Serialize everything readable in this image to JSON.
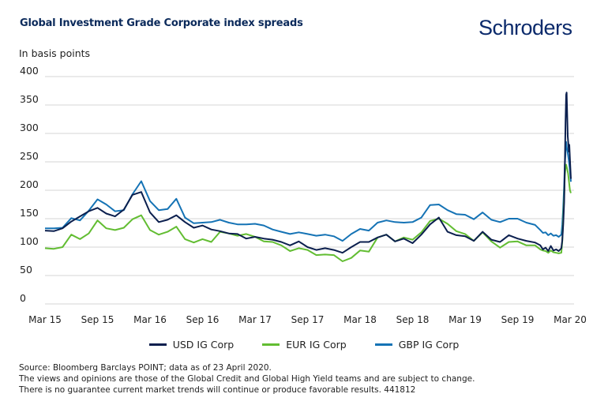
{
  "header": {
    "title": "Global Investment Grade Corporate index spreads",
    "logo_text": "Schroders",
    "unit_label": "In basis points"
  },
  "colors": {
    "usd": "#0b1f4e",
    "eur": "#62bd32",
    "gbp": "#1573b5",
    "grid": "#d4d4d4",
    "title": "#0b2a5b"
  },
  "footer": {
    "lines": [
      "Source: Bloomberg Barclays POINT; data as of 23 April 2020.",
      "The views and opinions are those of the Global Credit and Global High Yield teams and are subject to change.",
      "There is no guarantee current market trends will continue or produce favorable results. 441812"
    ]
  },
  "chart_data": {
    "type": "line",
    "title": "Global Investment Grade Corporate index spreads",
    "ylabel": "In basis points",
    "xlabel": "",
    "ylim": [
      0,
      400
    ],
    "yticks": [
      0,
      50,
      100,
      150,
      200,
      250,
      300,
      350,
      400
    ],
    "xlim_months": [
      0,
      61
    ],
    "xticks": [
      {
        "label": "Mar 15",
        "month": 0
      },
      {
        "label": "Sep 15",
        "month": 6
      },
      {
        "label": "Mar 16",
        "month": 12
      },
      {
        "label": "Sep 16",
        "month": 18
      },
      {
        "label": "Mar 17",
        "month": 24
      },
      {
        "label": "Sep 17",
        "month": 30
      },
      {
        "label": "Mar 18",
        "month": 36
      },
      {
        "label": "Sep 18",
        "month": 42
      },
      {
        "label": "Mar 19",
        "month": 48
      },
      {
        "label": "Sep 19",
        "month": 54
      },
      {
        "label": "Mar 20",
        "month": 60
      }
    ],
    "grid": true,
    "legend_position": "bottom",
    "x_unit": "months since Mar 2015",
    "series": [
      {
        "name": "USD IG Corp",
        "key": "usd",
        "points": [
          [
            0,
            129
          ],
          [
            1,
            128
          ],
          [
            2,
            133
          ],
          [
            3,
            145
          ],
          [
            4,
            154
          ],
          [
            5,
            163
          ],
          [
            6,
            169
          ],
          [
            7,
            159
          ],
          [
            8,
            154
          ],
          [
            9,
            166
          ],
          [
            10,
            192
          ],
          [
            11,
            197
          ],
          [
            12,
            161
          ],
          [
            13,
            144
          ],
          [
            14,
            148
          ],
          [
            15,
            156
          ],
          [
            16,
            144
          ],
          [
            17,
            134
          ],
          [
            18,
            138
          ],
          [
            19,
            131
          ],
          [
            20,
            128
          ],
          [
            21,
            124
          ],
          [
            22,
            123
          ],
          [
            23,
            115
          ],
          [
            24,
            118
          ],
          [
            25,
            115
          ],
          [
            26,
            113
          ],
          [
            27,
            109
          ],
          [
            28,
            103
          ],
          [
            29,
            110
          ],
          [
            30,
            100
          ],
          [
            31,
            95
          ],
          [
            32,
            98
          ],
          [
            33,
            95
          ],
          [
            34,
            90
          ],
          [
            35,
            100
          ],
          [
            36,
            109
          ],
          [
            37,
            109
          ],
          [
            38,
            117
          ],
          [
            39,
            122
          ],
          [
            40,
            110
          ],
          [
            41,
            115
          ],
          [
            42,
            107
          ],
          [
            43,
            122
          ],
          [
            44,
            140
          ],
          [
            45,
            152
          ],
          [
            46,
            127
          ],
          [
            47,
            121
          ],
          [
            48,
            119
          ],
          [
            49,
            111
          ],
          [
            50,
            127
          ],
          [
            51,
            113
          ],
          [
            52,
            109
          ],
          [
            53,
            121
          ],
          [
            54,
            115
          ],
          [
            55,
            111
          ],
          [
            56,
            108
          ],
          [
            56.6,
            103
          ],
          [
            56.9,
            96
          ],
          [
            57.2,
            99
          ],
          [
            57.5,
            93
          ],
          [
            57.8,
            102
          ],
          [
            58.1,
            94
          ],
          [
            58.4,
            96
          ],
          [
            58.7,
            93
          ],
          [
            59.0,
            98
          ],
          [
            59.3,
            112
          ],
          [
            59.6,
            140
          ],
          [
            59.9,
            180
          ],
          [
            60.1,
            240
          ],
          [
            60.3,
            320
          ],
          [
            60.5,
            368
          ],
          [
            60.65,
            372
          ],
          [
            60.8,
            340
          ],
          [
            61.0,
            295
          ],
          [
            61.2,
            281
          ],
          [
            61.35,
            268
          ],
          [
            61.5,
            280
          ],
          [
            61.7,
            255
          ],
          [
            62.0,
            220
          ]
        ]
      },
      {
        "name": "EUR IG Corp",
        "key": "eur",
        "points": [
          [
            0,
            98
          ],
          [
            1,
            97
          ],
          [
            2,
            100
          ],
          [
            3,
            122
          ],
          [
            4,
            114
          ],
          [
            5,
            124
          ],
          [
            6,
            147
          ],
          [
            7,
            133
          ],
          [
            8,
            130
          ],
          [
            9,
            134
          ],
          [
            10,
            149
          ],
          [
            11,
            156
          ],
          [
            12,
            130
          ],
          [
            13,
            122
          ],
          [
            14,
            127
          ],
          [
            15,
            136
          ],
          [
            16,
            114
          ],
          [
            17,
            108
          ],
          [
            18,
            114
          ],
          [
            19,
            109
          ],
          [
            20,
            127
          ],
          [
            21,
            124
          ],
          [
            22,
            120
          ],
          [
            23,
            123
          ],
          [
            24,
            118
          ],
          [
            25,
            110
          ],
          [
            26,
            109
          ],
          [
            27,
            103
          ],
          [
            28,
            93
          ],
          [
            29,
            98
          ],
          [
            30,
            95
          ],
          [
            31,
            86
          ],
          [
            32,
            87
          ],
          [
            33,
            86
          ],
          [
            34,
            75
          ],
          [
            35,
            81
          ],
          [
            36,
            94
          ],
          [
            37,
            92
          ],
          [
            38,
            117
          ],
          [
            39,
            122
          ],
          [
            40,
            110
          ],
          [
            41,
            117
          ],
          [
            42,
            113
          ],
          [
            43,
            126
          ],
          [
            44,
            146
          ],
          [
            45,
            150
          ],
          [
            46,
            141
          ],
          [
            47,
            128
          ],
          [
            48,
            123
          ],
          [
            49,
            111
          ],
          [
            50,
            126
          ],
          [
            51,
            110
          ],
          [
            52,
            99
          ],
          [
            53,
            109
          ],
          [
            54,
            110
          ],
          [
            55,
            103
          ],
          [
            56,
            103
          ],
          [
            56.6,
            96
          ],
          [
            56.9,
            94
          ],
          [
            57.2,
            93
          ],
          [
            57.5,
            90
          ],
          [
            57.8,
            94
          ],
          [
            58.1,
            91
          ],
          [
            58.4,
            90
          ],
          [
            58.7,
            89
          ],
          [
            59.0,
            90
          ],
          [
            59.3,
            110
          ],
          [
            59.6,
            150
          ],
          [
            59.9,
            190
          ],
          [
            60.1,
            225
          ],
          [
            60.3,
            240
          ],
          [
            60.5,
            245
          ],
          [
            60.8,
            238
          ],
          [
            61.1,
            230
          ],
          [
            61.4,
            215
          ],
          [
            61.7,
            200
          ],
          [
            62.0,
            195
          ]
        ]
      },
      {
        "name": "GBP IG Corp",
        "key": "gbp",
        "points": [
          [
            0,
            133
          ],
          [
            1,
            133
          ],
          [
            2,
            134
          ],
          [
            3,
            151
          ],
          [
            4,
            147
          ],
          [
            5,
            164
          ],
          [
            6,
            184
          ],
          [
            7,
            175
          ],
          [
            8,
            163
          ],
          [
            9,
            165
          ],
          [
            10,
            193
          ],
          [
            11,
            216
          ],
          [
            12,
            181
          ],
          [
            13,
            165
          ],
          [
            14,
            167
          ],
          [
            15,
            185
          ],
          [
            16,
            152
          ],
          [
            17,
            142
          ],
          [
            18,
            143
          ],
          [
            19,
            144
          ],
          [
            20,
            148
          ],
          [
            21,
            143
          ],
          [
            22,
            140
          ],
          [
            23,
            140
          ],
          [
            24,
            141
          ],
          [
            25,
            138
          ],
          [
            26,
            131
          ],
          [
            27,
            127
          ],
          [
            28,
            123
          ],
          [
            29,
            126
          ],
          [
            30,
            123
          ],
          [
            31,
            120
          ],
          [
            32,
            122
          ],
          [
            33,
            119
          ],
          [
            34,
            111
          ],
          [
            35,
            123
          ],
          [
            36,
            132
          ],
          [
            37,
            129
          ],
          [
            38,
            143
          ],
          [
            39,
            147
          ],
          [
            40,
            144
          ],
          [
            41,
            143
          ],
          [
            42,
            144
          ],
          [
            43,
            152
          ],
          [
            44,
            174
          ],
          [
            45,
            175
          ],
          [
            46,
            165
          ],
          [
            47,
            158
          ],
          [
            48,
            157
          ],
          [
            49,
            149
          ],
          [
            50,
            161
          ],
          [
            51,
            148
          ],
          [
            52,
            144
          ],
          [
            53,
            150
          ],
          [
            54,
            150
          ],
          [
            55,
            143
          ],
          [
            56,
            139
          ],
          [
            56.6,
            130
          ],
          [
            56.9,
            125
          ],
          [
            57.2,
            126
          ],
          [
            57.5,
            121
          ],
          [
            57.8,
            124
          ],
          [
            58.1,
            120
          ],
          [
            58.4,
            121
          ],
          [
            58.7,
            118
          ],
          [
            59.0,
            122
          ],
          [
            59.3,
            140
          ],
          [
            59.6,
            170
          ],
          [
            59.9,
            210
          ],
          [
            60.1,
            245
          ],
          [
            60.3,
            265
          ],
          [
            60.5,
            285
          ],
          [
            60.7,
            275
          ],
          [
            60.9,
            270
          ],
          [
            61.1,
            262
          ],
          [
            61.4,
            250
          ],
          [
            61.7,
            235
          ],
          [
            62.0,
            215
          ]
        ]
      }
    ]
  }
}
